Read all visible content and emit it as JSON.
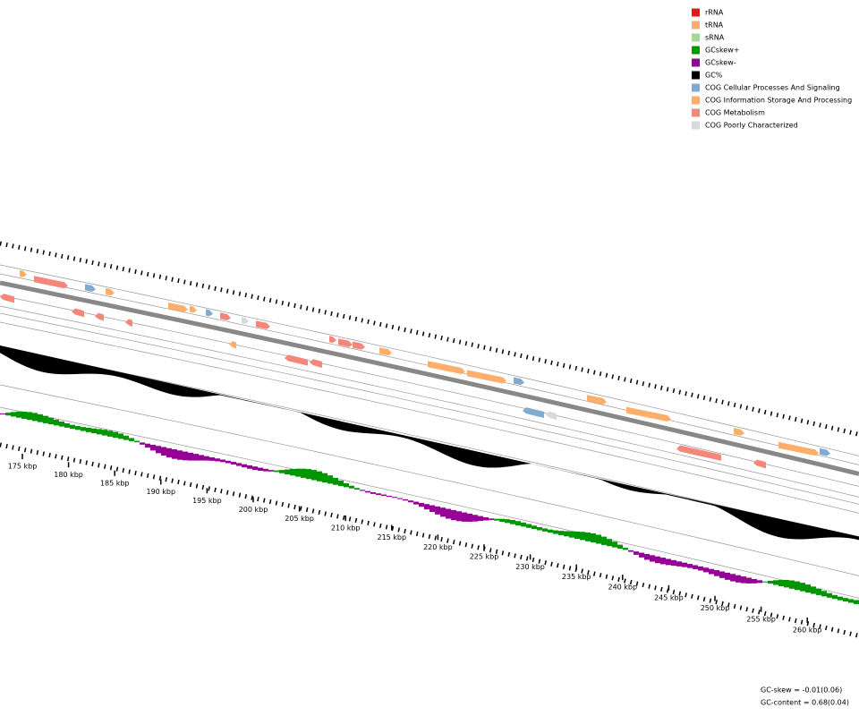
{
  "legend": [
    {
      "label": "rRNA",
      "color": "#e31a1c"
    },
    {
      "label": "tRNA",
      "color": "#fdae6b"
    },
    {
      "label": "sRNA",
      "color": "#a1d99b"
    },
    {
      "label": "GCskew+",
      "color": "#009600"
    },
    {
      "label": "GCskew-",
      "color": "#960096"
    },
    {
      "label": "GC%",
      "color": "#000000"
    },
    {
      "label": "COG Cellular Processes And Signaling",
      "color": "#7fabd1"
    },
    {
      "label": "COG Information Storage And Processing",
      "color": "#fdae6b"
    },
    {
      "label": "COG Metabolism",
      "color": "#f4877a"
    },
    {
      "label": "COG Poorly Characterized",
      "color": "#d9d9d9"
    }
  ],
  "axis_labels": [
    "175 kbp",
    "180 kbp",
    "185 kbp",
    "190 kbp",
    "195 kbp",
    "200 kbp",
    "205 kbp",
    "210 kbp",
    "215 kbp",
    "220 kbp",
    "225 kbp",
    "230 kbp",
    "235 kbp",
    "240 kbp",
    "245 kbp",
    "250 kbp",
    "255 kbp",
    "260 kbp"
  ],
  "stats": [
    "GC-skew = -0.01(0.06)",
    "GC-content = 0.68(0.04)"
  ]
}
